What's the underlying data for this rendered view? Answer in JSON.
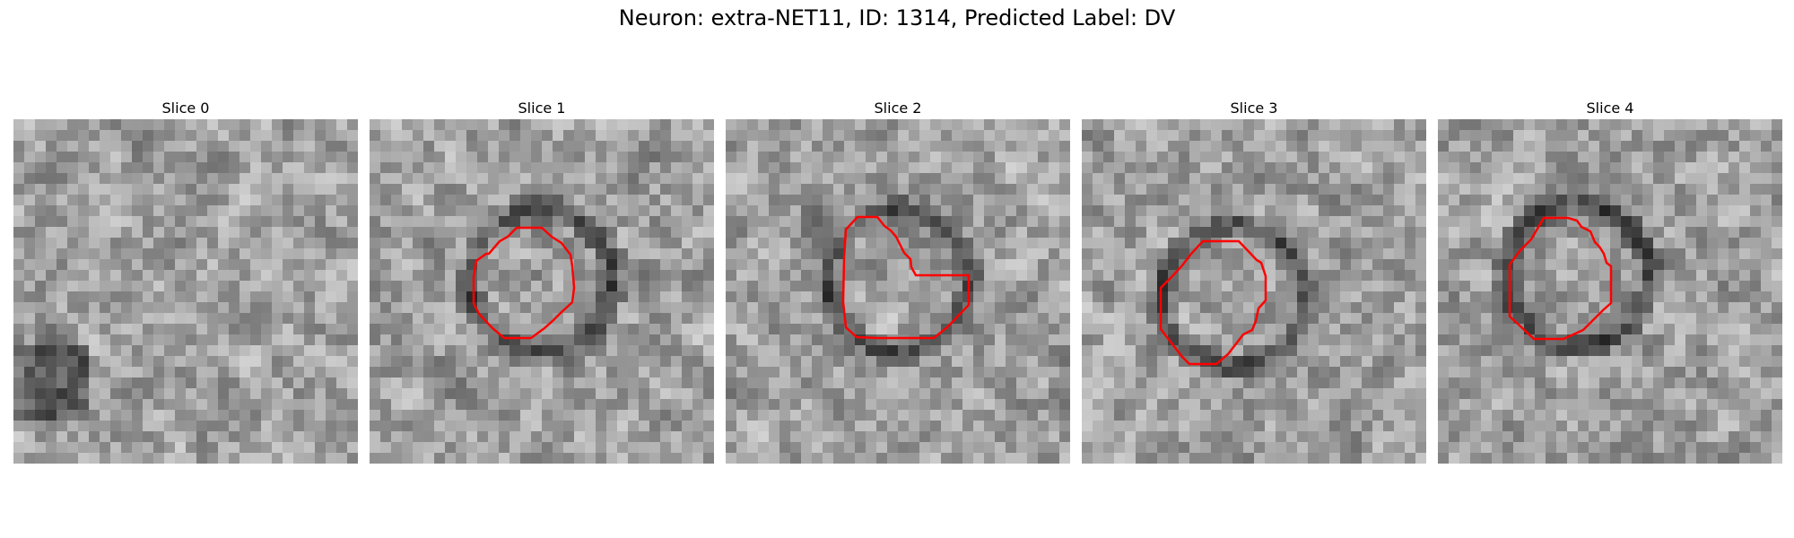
{
  "figure": {
    "title": "Neuron: extra-NET11, ID: 1314, Predicted Label: DV"
  },
  "panels": [
    {
      "title": "Slice 0",
      "has_contour": false
    },
    {
      "title": "Slice 1",
      "has_contour": true
    },
    {
      "title": "Slice 2",
      "has_contour": true
    },
    {
      "title": "Slice 3",
      "has_contour": true
    },
    {
      "title": "Slice 4",
      "has_contour": true
    }
  ],
  "colors": {
    "contour": "#ff0000",
    "background": "#ffffff"
  },
  "colormap": "grayscale"
}
